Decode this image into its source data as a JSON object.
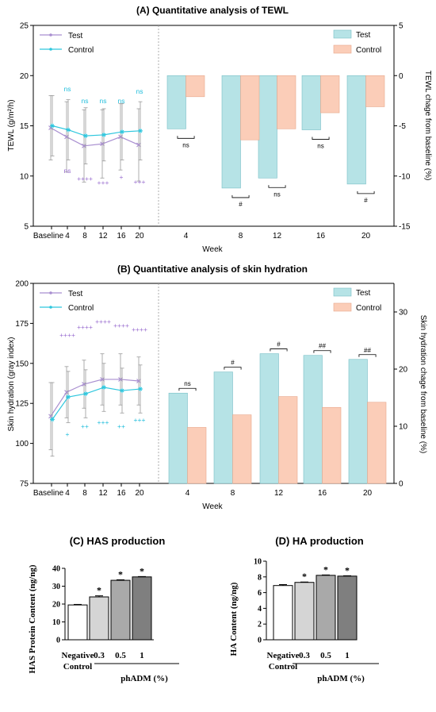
{
  "colors": {
    "test_line": "#a98fd0",
    "control_line": "#2fc7de",
    "test_bar": "#b6e3e6",
    "test_bar_edge": "#78bfc6",
    "control_bar": "#fbcdb8",
    "control_bar_edge": "#e8a88c",
    "test_marker_text": "#9a6fd0",
    "control_marker_text": "#22bedc",
    "has_bars": [
      "#ffffff",
      "#d5d5d5",
      "#a9a9a9",
      "#7f7f7f"
    ]
  },
  "chart_data": [
    {
      "id": "A",
      "type": "line+bar",
      "title": "(A) Quantitative analysis of TEWL",
      "xlabel": "Week",
      "line_panel": {
        "ylabel": "TEWL (g/m²/h)",
        "ylim": [
          5,
          25
        ],
        "yticks": [
          "5",
          "10",
          "15",
          "20",
          "25"
        ],
        "categories": [
          "Baseline",
          "4",
          "8",
          "12",
          "16",
          "20"
        ],
        "legend": "top-left",
        "series": [
          {
            "name": "Test",
            "values": [
              14.8,
              13.9,
              13.0,
              13.2,
              13.9,
              13.1
            ],
            "err": [
              3.2,
              3.5,
              3.6,
              3.4,
              3.3,
              3.6
            ]
          },
          {
            "name": "Control",
            "values": [
              15.0,
              14.6,
              14.0,
              14.1,
              14.4,
              14.5
            ],
            "err": [
              3.0,
              3.0,
              2.8,
              2.6,
              2.8,
              2.9
            ]
          }
        ],
        "annotations_control": [
          "",
          "ns",
          "ns",
          "ns",
          "ns",
          "ns"
        ],
        "annotations_test": [
          "",
          "ns",
          "++++",
          "+++",
          "+",
          "+++"
        ]
      },
      "bar_panel": {
        "ylabel": "TEWL chage from baseline (%)",
        "ylim": [
          -15,
          5
        ],
        "yticks": [
          "-15",
          "-10",
          "-5",
          "0",
          "5"
        ],
        "categories": [
          "4",
          "8",
          "12",
          "16",
          "20"
        ],
        "legend": "top-right",
        "series": [
          {
            "name": "Test",
            "values": [
              -5.3,
              -11.2,
              -10.2,
              -5.4,
              -10.8
            ]
          },
          {
            "name": "Control",
            "values": [
              -2.1,
              -6.4,
              -5.3,
              -3.7,
              -3.1
            ]
          }
        ],
        "comparisons": [
          "ns",
          "#",
          "ns",
          "ns",
          "#"
        ]
      }
    },
    {
      "id": "B",
      "type": "line+bar",
      "title": "(B) Quantitative analysis of skin hydration",
      "xlabel": "Week",
      "line_panel": {
        "ylabel": "Skin hydration (gray index)",
        "ylim": [
          75,
          200
        ],
        "yticks": [
          "75",
          "100",
          "125",
          "150",
          "175",
          "200"
        ],
        "categories": [
          "Baseline",
          "4",
          "8",
          "12",
          "16",
          "20"
        ],
        "legend": "top-left",
        "series": [
          {
            "name": "Test",
            "values": [
              117,
              132,
              137,
              140,
              140,
              139
            ],
            "err": [
              21,
              16,
              15,
              16,
              16,
              15
            ]
          },
          {
            "name": "Control",
            "values": [
              115,
              129,
              131,
              135,
              133,
              134
            ],
            "err": [
              23,
              16,
              15,
              15,
              14,
              15
            ]
          }
        ],
        "annotations_test": [
          "",
          "++++",
          "++++",
          "++++",
          "++++",
          "++++"
        ],
        "annotations_control": [
          "",
          "+",
          "++",
          "+++",
          "++",
          "+++"
        ]
      },
      "bar_panel": {
        "ylabel": "Skin hydration chage from baseline (%)",
        "ylim": [
          0,
          35
        ],
        "yticks": [
          "0",
          "10",
          "20",
          "30"
        ],
        "categories": [
          "4",
          "8",
          "12",
          "16",
          "20"
        ],
        "legend": "top-right",
        "series": [
          {
            "name": "Test",
            "values": [
              15.8,
              19.5,
              22.7,
              22.4,
              21.7
            ]
          },
          {
            "name": "Control",
            "values": [
              9.8,
              12.0,
              15.2,
              13.3,
              14.2
            ]
          }
        ],
        "comparisons": [
          "ns",
          "#",
          "#",
          "##",
          "##"
        ]
      }
    },
    {
      "id": "C",
      "type": "bar",
      "title": "(C) HAS production",
      "ylabel": "HAS Protein Content (ng/ng)",
      "ylim": [
        0,
        40
      ],
      "yticks": [
        "0",
        "10",
        "20",
        "30",
        "40"
      ],
      "categories": [
        "Negative Control",
        "0.3",
        "0.5",
        "1"
      ],
      "values": [
        19.5,
        24.0,
        33.3,
        35.2
      ],
      "err": [
        0.3,
        0.6,
        0.3,
        0.2
      ],
      "significance": [
        "",
        "*",
        "*",
        "*"
      ],
      "group_label": "phADM (%)",
      "neg_label_lines": [
        "Negative",
        "Control"
      ]
    },
    {
      "id": "D",
      "type": "bar",
      "title": "(D) HA production",
      "ylabel": "HA Content (ng/ng)",
      "ylim": [
        0,
        10
      ],
      "yticks": [
        "0",
        "2",
        "4",
        "6",
        "8",
        "10"
      ],
      "categories": [
        "Negative Control",
        "0.3",
        "0.5",
        "1"
      ],
      "values": [
        6.9,
        7.3,
        8.2,
        8.1
      ],
      "err": [
        0.12,
        0.05,
        0.05,
        0.05
      ],
      "significance": [
        "",
        "*",
        "*",
        "*"
      ],
      "group_label": "phADM (%)",
      "neg_label_lines": [
        "Negative",
        "Control"
      ]
    }
  ]
}
